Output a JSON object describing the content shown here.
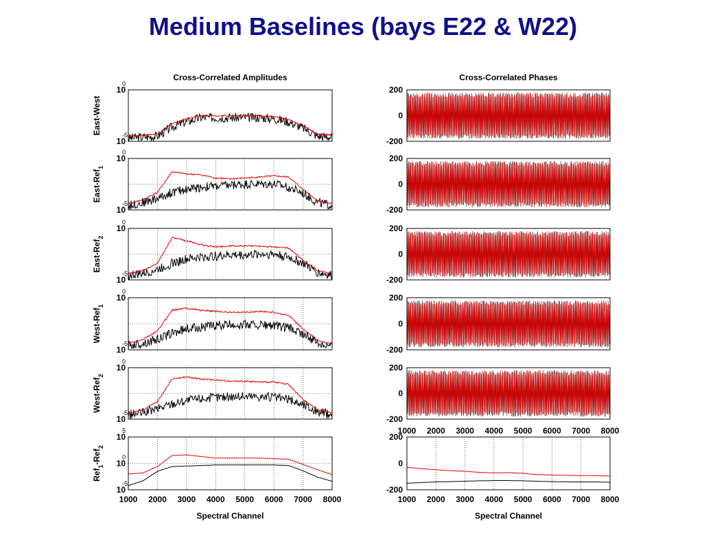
{
  "slide": {
    "title": "Medium Baselines (bays E22 & W22)"
  },
  "colors": {
    "title": "#10108a",
    "series_black": "#000000",
    "series_red": "#e00000",
    "grid": "#000000"
  },
  "chart_data": [
    {
      "type": "line",
      "column": "amplitude",
      "row": 0,
      "title": "Cross-Correlated Amplitudes",
      "ylabel_main": "East-West",
      "ylabel_sub": "",
      "yscale": "log",
      "ytick_bases": [
        "10",
        "10"
      ],
      "ytick_exps": [
        "0",
        "-5"
      ],
      "xlim": [
        1000,
        8000
      ],
      "ylim": [
        -5,
        0
      ],
      "series": [
        {
          "color": "black",
          "values": [
            -4.6,
            -4.5,
            -4.4,
            -3.5,
            -3.0,
            -2.6,
            -2.6,
            -2.6,
            -2.6,
            -2.6,
            -2.7,
            -3.0,
            -3.6,
            -4.4,
            -4.5
          ]
        },
        {
          "color": "red",
          "values": [
            -4.5,
            -4.4,
            -4.3,
            -3.3,
            -2.8,
            -2.5,
            -2.5,
            -2.5,
            -2.5,
            -2.5,
            -2.6,
            -2.9,
            -3.5,
            -4.3,
            -4.4
          ]
        }
      ]
    },
    {
      "type": "line",
      "column": "amplitude",
      "row": 1,
      "ylabel_main": "East-Ref",
      "ylabel_sub": "1",
      "yscale": "log",
      "ytick_bases": [
        "10",
        "10"
      ],
      "ytick_exps": [
        "0",
        "-5"
      ],
      "xlim": [
        1000,
        8000
      ],
      "ylim": [
        -5,
        0
      ],
      "grid": true,
      "series": [
        {
          "color": "black",
          "values": [
            -4.5,
            -4.2,
            -3.8,
            -3.2,
            -2.9,
            -2.7,
            -2.6,
            -2.5,
            -2.4,
            -2.4,
            -2.4,
            -2.7,
            -3.3,
            -4.2,
            -4.5
          ]
        },
        {
          "color": "red",
          "values": [
            -4.4,
            -4.0,
            -3.3,
            -1.3,
            -1.5,
            -1.6,
            -1.9,
            -2.0,
            -1.9,
            -1.8,
            -1.7,
            -1.8,
            -3.0,
            -4.1,
            -4.4
          ]
        }
      ]
    },
    {
      "type": "line",
      "column": "amplitude",
      "row": 2,
      "ylabel_main": "East-Ref",
      "ylabel_sub": "2",
      "yscale": "log",
      "ytick_bases": [
        "10",
        "10"
      ],
      "ytick_exps": [
        "0",
        "-5"
      ],
      "xlim": [
        1000,
        8000
      ],
      "ylim": [
        -5,
        0
      ],
      "grid": true,
      "series": [
        {
          "color": "black",
          "values": [
            -4.5,
            -4.3,
            -3.9,
            -3.3,
            -2.9,
            -2.7,
            -2.6,
            -2.5,
            -2.5,
            -2.4,
            -2.4,
            -2.7,
            -3.3,
            -4.2,
            -4.5
          ]
        },
        {
          "color": "red",
          "values": [
            -4.4,
            -4.1,
            -3.4,
            -0.9,
            -1.2,
            -1.6,
            -1.8,
            -1.7,
            -1.7,
            -1.7,
            -1.8,
            -1.9,
            -3.1,
            -4.1,
            -4.4
          ]
        }
      ]
    },
    {
      "type": "line",
      "column": "amplitude",
      "row": 3,
      "ylabel_main": "West-Ref",
      "ylabel_sub": "1",
      "yscale": "log",
      "ytick_bases": [
        "10",
        "10"
      ],
      "ytick_exps": [
        "0",
        "-5"
      ],
      "xlim": [
        1000,
        8000
      ],
      "ylim": [
        -5,
        0
      ],
      "grid": true,
      "series": [
        {
          "color": "black",
          "values": [
            -4.5,
            -4.3,
            -3.9,
            -3.3,
            -2.9,
            -2.7,
            -2.6,
            -2.5,
            -2.5,
            -2.5,
            -2.6,
            -2.8,
            -3.4,
            -4.2,
            -4.5
          ]
        },
        {
          "color": "red",
          "values": [
            -4.4,
            -4.0,
            -3.2,
            -1.2,
            -1.0,
            -1.2,
            -1.3,
            -1.4,
            -1.4,
            -1.3,
            -1.4,
            -1.7,
            -3.0,
            -4.1,
            -4.4
          ]
        }
      ]
    },
    {
      "type": "line",
      "column": "amplitude",
      "row": 4,
      "ylabel_main": "West-Ref",
      "ylabel_sub": "2",
      "yscale": "log",
      "ytick_bases": [
        "10",
        "10"
      ],
      "ytick_exps": [
        "0",
        "-5"
      ],
      "xlim": [
        1000,
        8000
      ],
      "ylim": [
        -5,
        0
      ],
      "grid": true,
      "series": [
        {
          "color": "black",
          "values": [
            -4.5,
            -4.3,
            -3.9,
            -3.4,
            -3.1,
            -2.9,
            -2.8,
            -2.7,
            -2.7,
            -2.7,
            -2.8,
            -3.0,
            -3.5,
            -4.2,
            -4.5
          ]
        },
        {
          "color": "red",
          "values": [
            -4.4,
            -4.1,
            -3.3,
            -1.1,
            -0.9,
            -1.1,
            -1.2,
            -1.3,
            -1.3,
            -1.4,
            -1.4,
            -1.6,
            -3.1,
            -4.1,
            -4.4
          ]
        }
      ]
    },
    {
      "type": "line",
      "column": "amplitude",
      "row": 5,
      "ylabel_main": "Ref",
      "ylabel_sub": "1",
      "ylabel_main2": "-Ref",
      "ylabel_sub2": "2",
      "yscale": "log",
      "ytick_bases": [
        "10",
        "10",
        "10"
      ],
      "ytick_exps": [
        "5",
        "0",
        "-5"
      ],
      "xlim": [
        1000,
        8000
      ],
      "ylim": [
        -5,
        5
      ],
      "grid": true,
      "xlabel": "Spectral Channel",
      "xticks": [
        "1000",
        "2000",
        "3000",
        "4000",
        "5000",
        "6000",
        "7000",
        "8000"
      ],
      "series": [
        {
          "color": "black",
          "values": [
            -4.2,
            -3.3,
            -1.5,
            -0.6,
            -0.5,
            -0.4,
            -0.3,
            -0.3,
            -0.3,
            -0.3,
            -0.3,
            -0.4,
            -1.4,
            -2.6,
            -3.4
          ]
        },
        {
          "color": "red",
          "values": [
            -2.0,
            -1.8,
            -0.6,
            1.5,
            1.6,
            1.3,
            1.0,
            1.0,
            1.0,
            1.0,
            0.9,
            0.8,
            -0.2,
            -1.2,
            -2.1
          ]
        }
      ]
    },
    {
      "type": "line",
      "column": "phase",
      "row": 0,
      "title": "Cross-Correlated Phases",
      "yticks": [
        "200",
        "0",
        "-200"
      ],
      "xlim": [
        1000,
        8000
      ],
      "ylim": [
        -200,
        200
      ],
      "series": [
        {
          "color": "black",
          "values": []
        },
        {
          "color": "red",
          "values": []
        }
      ]
    },
    {
      "type": "line",
      "column": "phase",
      "row": 1,
      "yticks": [
        "200",
        "0",
        "-200"
      ],
      "xlim": [
        1000,
        8000
      ],
      "ylim": [
        -200,
        200
      ],
      "series": [
        {
          "color": "black",
          "values": []
        },
        {
          "color": "red",
          "values": []
        }
      ]
    },
    {
      "type": "line",
      "column": "phase",
      "row": 2,
      "yticks": [
        "200",
        "0",
        "-200"
      ],
      "xlim": [
        1000,
        8000
      ],
      "ylim": [
        -200,
        200
      ],
      "series": [
        {
          "color": "black",
          "values": []
        },
        {
          "color": "red",
          "values": []
        }
      ]
    },
    {
      "type": "line",
      "column": "phase",
      "row": 3,
      "yticks": [
        "200",
        "0",
        "-200"
      ],
      "xlim": [
        1000,
        8000
      ],
      "ylim": [
        -200,
        200
      ],
      "series": [
        {
          "color": "black",
          "values": []
        },
        {
          "color": "red",
          "values": []
        }
      ]
    },
    {
      "type": "line",
      "column": "phase",
      "row": 4,
      "yticks": [
        "200",
        "0",
        "-200"
      ],
      "xlim": [
        1000,
        8000
      ],
      "ylim": [
        -200,
        200
      ],
      "xticks": [
        "1000",
        "2000",
        "3000",
        "4000",
        "5000",
        "6000",
        "7000",
        "8000"
      ],
      "series": [
        {
          "color": "black",
          "values": []
        },
        {
          "color": "red",
          "values": []
        }
      ]
    },
    {
      "type": "line",
      "column": "phase",
      "row": 5,
      "yticks": [
        "200",
        "0",
        "-200"
      ],
      "xlim": [
        1000,
        8000
      ],
      "ylim": [
        -200,
        200
      ],
      "grid": true,
      "xlabel": "Spectral Channel",
      "xticks": [
        "1000",
        "2000",
        "3000",
        "4000",
        "5000",
        "6000",
        "7000",
        "8000"
      ],
      "series": [
        {
          "color": "black",
          "values": [
            -150,
            -145,
            -140,
            -138,
            -135,
            -132,
            -130,
            -130,
            -132,
            -135,
            -138,
            -140,
            -140,
            -140,
            -143
          ]
        },
        {
          "color": "red",
          "values": [
            -30,
            -40,
            -48,
            -55,
            -60,
            -68,
            -72,
            -70,
            -75,
            -85,
            -88,
            -90,
            -92,
            -93,
            -95
          ]
        }
      ]
    }
  ]
}
